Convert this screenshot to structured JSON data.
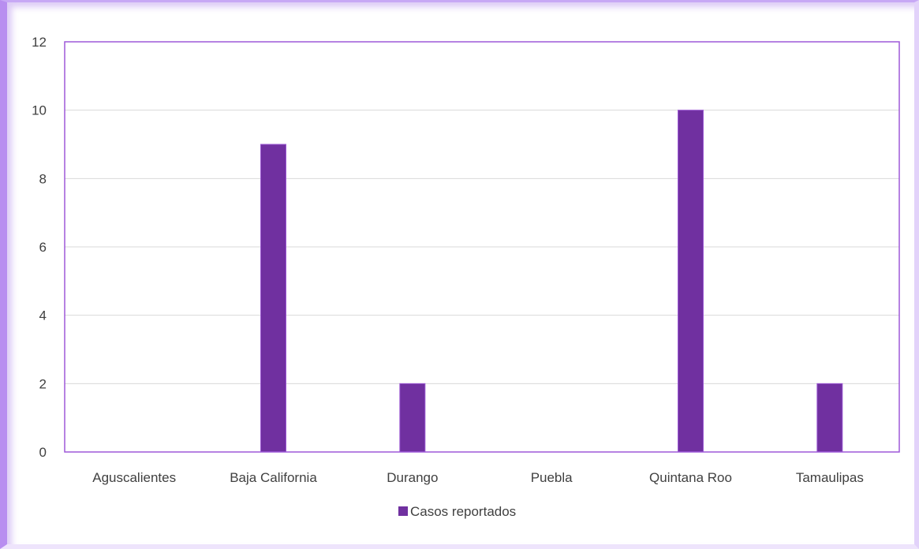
{
  "colors": {
    "bar": "#7030a0",
    "bar_edge": "#9b57d3",
    "plot_border": "#9e59d8",
    "grid": "#d9d9d9"
  },
  "chart_data": {
    "type": "bar",
    "categories": [
      "Aguscalientes",
      "Baja California",
      "Durango",
      "Puebla",
      "Quintana Roo",
      "Tamaulipas"
    ],
    "series": [
      {
        "name": "Casos reportados",
        "values": [
          0,
          9,
          2,
          0,
          10,
          2
        ]
      }
    ],
    "ylim": [
      0,
      12
    ],
    "yticks": [
      0,
      2,
      4,
      6,
      8,
      10,
      12
    ],
    "grid": true,
    "legend": "bottom",
    "title": "",
    "xlabel": "",
    "ylabel": ""
  }
}
